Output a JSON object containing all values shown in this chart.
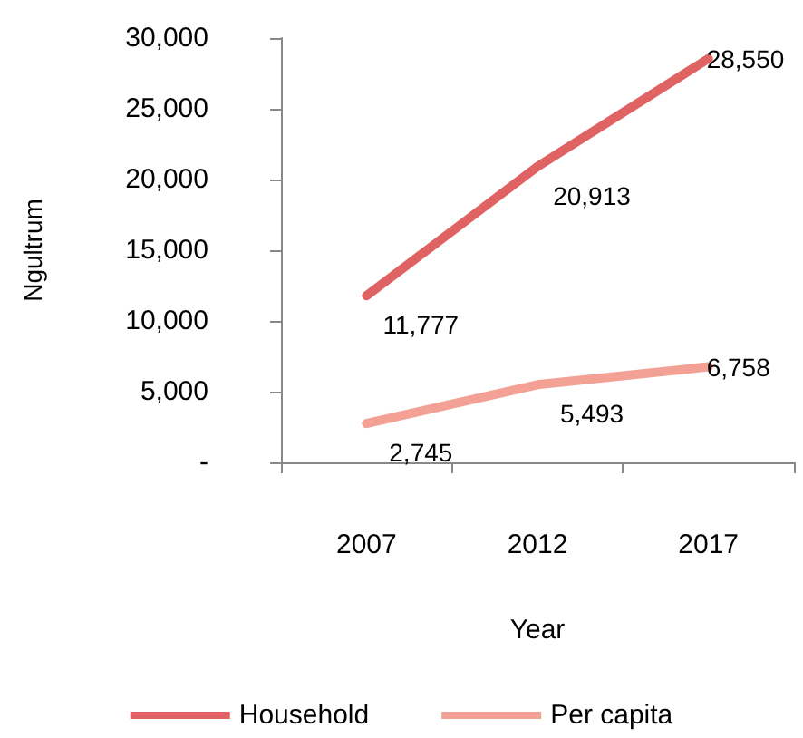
{
  "chart_data": {
    "type": "line",
    "xlabel": "Year",
    "ylabel": "Ngultrum",
    "categories": [
      "2007",
      "2012",
      "2017"
    ],
    "series": [
      {
        "name": "Household",
        "color": "#e06363",
        "values": [
          11777,
          20913,
          28550
        ],
        "value_labels": [
          "11,777",
          "20,913",
          "28,550"
        ]
      },
      {
        "name": "Per capita",
        "color": "#f2a194",
        "values": [
          2745,
          5493,
          6758
        ],
        "value_labels": [
          "2,745",
          "5,493",
          "6,758"
        ]
      }
    ],
    "ylim": [
      0,
      30000
    ],
    "yticks": [
      {
        "value": 0,
        "label": "-"
      },
      {
        "value": 5000,
        "label": "5,000"
      },
      {
        "value": 10000,
        "label": "10,000"
      },
      {
        "value": 15000,
        "label": "15,000"
      },
      {
        "value": 20000,
        "label": "20,000"
      },
      {
        "value": 25000,
        "label": "25,000"
      },
      {
        "value": 30000,
        "label": "30,000"
      }
    ],
    "grid": false,
    "legend": "bottom",
    "marker": "none",
    "line_style": "solid"
  }
}
